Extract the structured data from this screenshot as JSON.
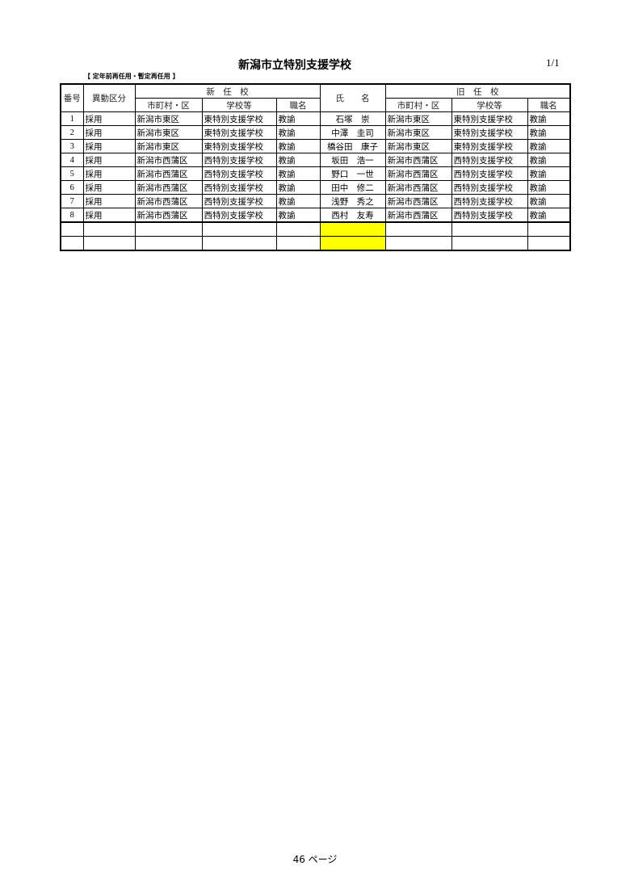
{
  "header": {
    "title": "新潟市立特別支援学校",
    "page_fraction": "1/1",
    "subtitle": "【 定年前再任用・暫定再任用 】"
  },
  "table": {
    "headers": {
      "number": "番号",
      "transfer_type": "異動区分",
      "new_school_group": "新　任　校",
      "name": "氏　　名",
      "old_school_group": "旧　任　校",
      "municipality": "市町村・区",
      "school": "学校等",
      "position": "職名"
    },
    "rows": [
      {
        "no": "1",
        "type": "採用",
        "new_muni": "新潟市東区",
        "new_school": "東特別支援学校",
        "new_pos": "教諭",
        "name": "石塚　崇",
        "old_muni": "新潟市東区",
        "old_school": "東特別支援学校",
        "old_pos": "教諭"
      },
      {
        "no": "2",
        "type": "採用",
        "new_muni": "新潟市東区",
        "new_school": "東特別支援学校",
        "new_pos": "教諭",
        "name": "中澤　圭司",
        "old_muni": "新潟市東区",
        "old_school": "東特別支援学校",
        "old_pos": "教諭"
      },
      {
        "no": "3",
        "type": "採用",
        "new_muni": "新潟市東区",
        "new_school": "東特別支援学校",
        "new_pos": "教諭",
        "name": "橋谷田　康子",
        "old_muni": "新潟市東区",
        "old_school": "東特別支援学校",
        "old_pos": "教諭"
      },
      {
        "no": "4",
        "type": "採用",
        "new_muni": "新潟市西蒲区",
        "new_school": "西特別支援学校",
        "new_pos": "教諭",
        "name": "坂田　浩一",
        "old_muni": "新潟市西蒲区",
        "old_school": "西特別支援学校",
        "old_pos": "教諭"
      },
      {
        "no": "5",
        "type": "採用",
        "new_muni": "新潟市西蒲区",
        "new_school": "西特別支援学校",
        "new_pos": "教諭",
        "name": "野口　一世",
        "old_muni": "新潟市西蒲区",
        "old_school": "西特別支援学校",
        "old_pos": "教諭"
      },
      {
        "no": "6",
        "type": "採用",
        "new_muni": "新潟市西蒲区",
        "new_school": "西特別支援学校",
        "new_pos": "教諭",
        "name": "田中　修二",
        "old_muni": "新潟市西蒲区",
        "old_school": "西特別支援学校",
        "old_pos": "教諭"
      },
      {
        "no": "7",
        "type": "採用",
        "new_muni": "新潟市西蒲区",
        "new_school": "西特別支援学校",
        "new_pos": "教諭",
        "name": "浅野　秀之",
        "old_muni": "新潟市西蒲区",
        "old_school": "西特別支援学校",
        "old_pos": "教諭"
      },
      {
        "no": "8",
        "type": "採用",
        "new_muni": "新潟市西蒲区",
        "new_school": "西特別支援学校",
        "new_pos": "教諭",
        "name": "西村　友寿",
        "old_muni": "新潟市西蒲区",
        "old_school": "西特別支援学校",
        "old_pos": "教諭"
      }
    ],
    "highlight_color": "#ffff00"
  },
  "footer": {
    "page_label": "46 ページ"
  }
}
